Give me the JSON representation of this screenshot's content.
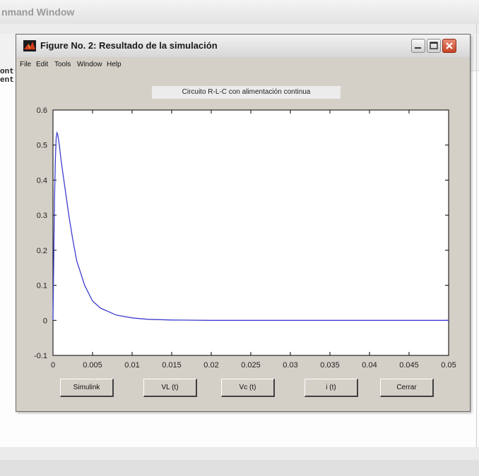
{
  "background_window": {
    "title": "nmand Window",
    "text_lines": [
      "ont",
      "ent"
    ]
  },
  "figure": {
    "title": "Figure No. 2: Resultado de la simulación",
    "menu": [
      "File",
      "Edit",
      "Tools",
      "Window",
      "Help"
    ],
    "plot_title": "Circuito R-L-C con alimentación continua",
    "buttons": [
      "Simulink",
      "VL (t)",
      "Vc (t)",
      "i (t)",
      "Cerrar"
    ]
  },
  "colors": {
    "line": "#3e3ecf",
    "close_button": "#c64526",
    "figure_bg": "#d4d0c8"
  },
  "chart_data": {
    "type": "line",
    "title": "Circuito R-L-C con alimentación continua",
    "xlabel": "",
    "ylabel": "",
    "xlim": [
      0,
      0.05
    ],
    "ylim": [
      -0.1,
      0.6
    ],
    "x_ticks": [
      "0",
      "0.005",
      "0.01",
      "0.015",
      "0.02",
      "0.025",
      "0.03",
      "0.035",
      "0.04",
      "0.045",
      "0.05"
    ],
    "y_ticks": [
      "0.6",
      "0.5",
      "0.4",
      "0.3",
      "0.2",
      "0.1",
      "0",
      "-0.1"
    ],
    "x_tick_values": [
      0,
      0.005,
      0.01,
      0.015,
      0.02,
      0.025,
      0.03,
      0.035,
      0.04,
      0.045,
      0.05
    ],
    "y_tick_values": [
      0.6,
      0.5,
      0.4,
      0.3,
      0.2,
      0.1,
      0,
      -0.1
    ],
    "grid": false,
    "series": [
      {
        "x": [
          0,
          0.0001,
          0.0002,
          0.0003,
          0.0004,
          0.0005,
          0.0006,
          0.0008,
          0.001,
          0.0015,
          0.002,
          0.0025,
          0.003,
          0.004,
          0.005,
          0.006,
          0.008,
          0.01,
          0.012,
          0.015,
          0.02,
          0.03,
          0.04,
          0.05
        ],
        "y": [
          0,
          0.18,
          0.35,
          0.46,
          0.52,
          0.535,
          0.53,
          0.5,
          0.46,
          0.38,
          0.3,
          0.23,
          0.17,
          0.1,
          0.055,
          0.035,
          0.015,
          0.007,
          0.003,
          0.001,
          0,
          0,
          0,
          0
        ]
      }
    ]
  }
}
